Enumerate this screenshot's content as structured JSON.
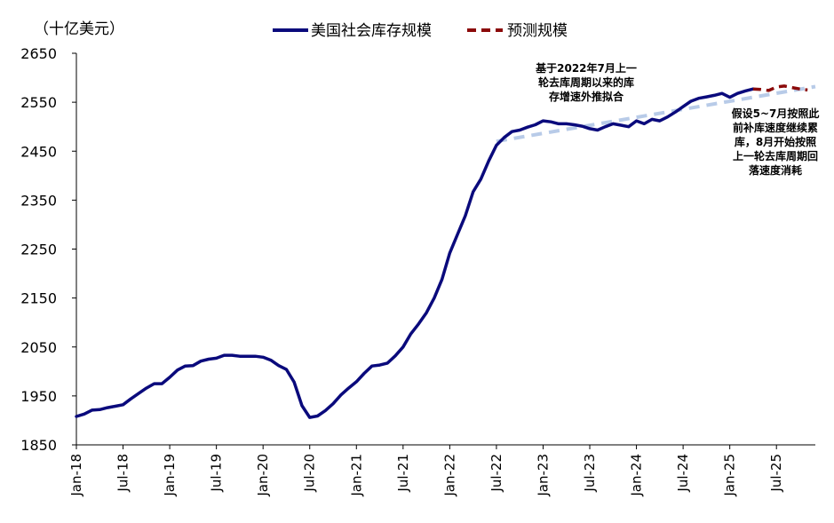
{
  "chart_data": {
    "type": "line",
    "unit_label": "（十亿美元）",
    "ylim": [
      1850,
      2650
    ],
    "yticks": [
      1850,
      1950,
      2050,
      2150,
      2250,
      2350,
      2450,
      2550,
      2650
    ],
    "xlim": [
      "2018-01",
      "2025-12"
    ],
    "xticks": [
      "Jan-18",
      "Jul-18",
      "Jan-19",
      "Jul-19",
      "Jan-20",
      "Jul-20",
      "Jan-21",
      "Jul-21",
      "Jan-22",
      "Jul-22",
      "Jan-23",
      "Jul-23",
      "Jan-24",
      "Jul-24",
      "Jan-25",
      "Jul-25"
    ],
    "legend": {
      "placement": "top",
      "entries": [
        {
          "label": "美国社会库存规模",
          "color": "#0a0a7c",
          "style": "solid"
        },
        {
          "label": "预测规模",
          "color": "#8b0a0a",
          "style": "dashed"
        }
      ]
    },
    "series": [
      {
        "name": "美国社会库存规模",
        "color": "#0a0a7c",
        "style": "solid",
        "points": [
          [
            "2018-01",
            1908
          ],
          [
            "2018-02",
            1913
          ],
          [
            "2018-03",
            1921
          ],
          [
            "2018-04",
            1922
          ],
          [
            "2018-05",
            1926
          ],
          [
            "2018-06",
            1929
          ],
          [
            "2018-07",
            1932
          ],
          [
            "2018-08",
            1944
          ],
          [
            "2018-09",
            1955
          ],
          [
            "2018-10",
            1966
          ],
          [
            "2018-11",
            1975
          ],
          [
            "2018-12",
            1975
          ],
          [
            "2019-01",
            1988
          ],
          [
            "2019-02",
            2003
          ],
          [
            "2019-03",
            2011
          ],
          [
            "2019-04",
            2012
          ],
          [
            "2019-05",
            2021
          ],
          [
            "2019-06",
            2025
          ],
          [
            "2019-07",
            2027
          ],
          [
            "2019-08",
            2033
          ],
          [
            "2019-09",
            2033
          ],
          [
            "2019-10",
            2031
          ],
          [
            "2019-11",
            2031
          ],
          [
            "2019-12",
            2031
          ],
          [
            "2020-01",
            2029
          ],
          [
            "2020-02",
            2023
          ],
          [
            "2020-03",
            2012
          ],
          [
            "2020-04",
            2004
          ],
          [
            "2020-05",
            1978
          ],
          [
            "2020-06",
            1930
          ],
          [
            "2020-07",
            1906
          ],
          [
            "2020-08",
            1909
          ],
          [
            "2020-09",
            1920
          ],
          [
            "2020-10",
            1934
          ],
          [
            "2020-11",
            1952
          ],
          [
            "2020-12",
            1966
          ],
          [
            "2021-01",
            1979
          ],
          [
            "2021-02",
            1996
          ],
          [
            "2021-03",
            2011
          ],
          [
            "2021-04",
            2013
          ],
          [
            "2021-05",
            2017
          ],
          [
            "2021-06",
            2032
          ],
          [
            "2021-07",
            2050
          ],
          [
            "2021-08",
            2077
          ],
          [
            "2021-09",
            2097
          ],
          [
            "2021-10",
            2120
          ],
          [
            "2021-11",
            2150
          ],
          [
            "2021-12",
            2188
          ],
          [
            "2022-01",
            2242
          ],
          [
            "2022-02",
            2280
          ],
          [
            "2022-03",
            2318
          ],
          [
            "2022-04",
            2367
          ],
          [
            "2022-05",
            2393
          ],
          [
            "2022-06",
            2430
          ],
          [
            "2022-07",
            2462
          ],
          [
            "2022-08",
            2478
          ],
          [
            "2022-09",
            2490
          ],
          [
            "2022-10",
            2493
          ],
          [
            "2022-11",
            2499
          ],
          [
            "2022-12",
            2504
          ],
          [
            "2023-01",
            2512
          ],
          [
            "2023-02",
            2510
          ],
          [
            "2023-03",
            2506
          ],
          [
            "2023-04",
            2506
          ],
          [
            "2023-05",
            2504
          ],
          [
            "2023-06",
            2501
          ],
          [
            "2023-07",
            2496
          ],
          [
            "2023-08",
            2493
          ],
          [
            "2023-09",
            2500
          ],
          [
            "2023-10",
            2506
          ],
          [
            "2023-11",
            2503
          ],
          [
            "2023-12",
            2500
          ],
          [
            "2024-01",
            2512
          ],
          [
            "2024-02",
            2506
          ],
          [
            "2024-03",
            2515
          ],
          [
            "2024-04",
            2512
          ],
          [
            "2024-05",
            2520
          ],
          [
            "2024-06",
            2530
          ],
          [
            "2024-07",
            2541
          ],
          [
            "2024-08",
            2552
          ],
          [
            "2024-09",
            2558
          ],
          [
            "2024-10",
            2561
          ],
          [
            "2024-11",
            2564
          ],
          [
            "2024-12",
            2568
          ],
          [
            "2025-01",
            2560
          ],
          [
            "2025-02",
            2568
          ],
          [
            "2025-03",
            2573
          ],
          [
            "2025-04",
            2577
          ]
        ]
      },
      {
        "name": "预测规模",
        "color": "#8b0a0a",
        "style": "dashed",
        "points": [
          [
            "2025-04",
            2577
          ],
          [
            "2025-05",
            2576
          ],
          [
            "2025-06",
            2574
          ],
          [
            "2025-07",
            2581
          ],
          [
            "2025-08",
            2583
          ],
          [
            "2025-09",
            2580
          ],
          [
            "2025-10",
            2577
          ],
          [
            "2025-11",
            2575
          ]
        ]
      },
      {
        "color": "#b8cbe8",
        "style": "dashed",
        "points": [
          [
            "2022-07",
            2470
          ],
          [
            "2025-12",
            2582
          ]
        ]
      }
    ],
    "annotations": [
      {
        "lines": [
          "基于2022年7月上一",
          "轮去库周期以来的库",
          "存增速外推拟合"
        ]
      },
      {
        "lines": [
          "假设5~7月按照此",
          "前补库速度继续累",
          "库，8月开始按照",
          "上一轮去库周期回",
          "落速度消耗"
        ]
      }
    ],
    "grid": false
  }
}
